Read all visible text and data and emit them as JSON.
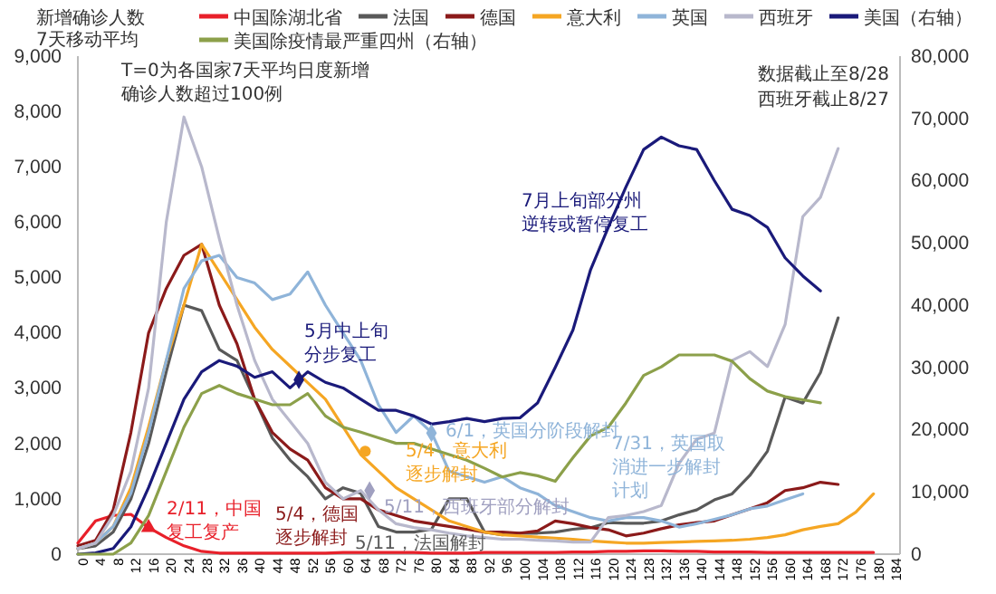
{
  "chart_data": {
    "type": "line",
    "ylabel": "新增确诊人数\n7天移动平均",
    "x": [
      0,
      4,
      8,
      12,
      16,
      20,
      24,
      28,
      32,
      36,
      40,
      44,
      48,
      52,
      56,
      60,
      64,
      68,
      72,
      76,
      80,
      84,
      88,
      92,
      96,
      100,
      104,
      108,
      112,
      116,
      120,
      124,
      128,
      132,
      136,
      140,
      144,
      148,
      152,
      156,
      160,
      164,
      168,
      172,
      176,
      180
    ],
    "xlim": [
      0,
      186
    ],
    "xticks": [
      0,
      4,
      8,
      12,
      16,
      20,
      24,
      28,
      32,
      36,
      40,
      44,
      48,
      52,
      56,
      60,
      64,
      68,
      72,
      76,
      80,
      84,
      88,
      92,
      96,
      100,
      104,
      108,
      112,
      116,
      120,
      124,
      128,
      132,
      136,
      140,
      144,
      148,
      152,
      156,
      160,
      164,
      168,
      172,
      176,
      180,
      184
    ],
    "ylim": [
      0,
      9000
    ],
    "yticks": [
      {
        "value": 0,
        "label": "0"
      },
      {
        "value": 1000,
        "label": "1,000"
      },
      {
        "value": 2000,
        "label": "2,000"
      },
      {
        "value": 3000,
        "label": "3,000"
      },
      {
        "value": 4000,
        "label": "4,000"
      },
      {
        "value": 5000,
        "label": "5,000"
      },
      {
        "value": 6000,
        "label": "6,000"
      },
      {
        "value": 7000,
        "label": "7,000"
      },
      {
        "value": 8000,
        "label": "8,000"
      },
      {
        "value": 9000,
        "label": "9,000"
      }
    ],
    "y2lim": [
      0,
      80000
    ],
    "y2ticks": [
      {
        "value": 0,
        "label": "0"
      },
      {
        "value": 10000,
        "label": "10,000"
      },
      {
        "value": 20000,
        "label": "20,000"
      },
      {
        "value": 30000,
        "label": "30,000"
      },
      {
        "value": 40000,
        "label": "40,000"
      },
      {
        "value": 50000,
        "label": "50,000"
      },
      {
        "value": 60000,
        "label": "60,000"
      },
      {
        "value": 70000,
        "label": "70,000"
      },
      {
        "value": 80000,
        "label": "80,000"
      }
    ],
    "grid": false,
    "legend": "top",
    "marker": "none",
    "line_style": "solid",
    "series": [
      {
        "name": "中国除湖北省",
        "color": "#e8202a",
        "values": [
          200,
          600,
          700,
          720,
          480,
          300,
          150,
          50,
          20,
          20,
          20,
          20,
          20,
          20,
          20,
          30,
          30,
          30,
          30,
          30,
          20,
          20,
          20,
          30,
          30,
          30,
          30,
          30,
          40,
          40,
          50,
          50,
          60,
          60,
          50,
          50,
          40,
          40,
          40,
          30,
          30,
          30,
          30,
          30,
          30,
          30
        ]
      },
      {
        "name": "法国",
        "color": "#595959",
        "values": [
          100,
          150,
          400,
          1000,
          2000,
          3300,
          4500,
          4400,
          3700,
          3500,
          2800,
          2100,
          1700,
          1400,
          1000,
          1200,
          1100,
          500,
          400,
          400,
          450,
          1000,
          1000,
          400,
          350,
          380,
          380,
          400,
          450,
          480,
          570,
          560,
          560,
          600,
          710,
          800,
          980,
          1090,
          1420,
          1860,
          2840,
          2730,
          3280,
          4270,
          null,
          null
        ]
      },
      {
        "name": "德国",
        "color": "#8b1a1a",
        "values": [
          150,
          250,
          800,
          2200,
          4000,
          4800,
          5400,
          5600,
          4500,
          3800,
          2800,
          2200,
          1900,
          1700,
          1200,
          1000,
          1000,
          800,
          700,
          600,
          550,
          500,
          450,
          400,
          400,
          380,
          420,
          600,
          550,
          480,
          440,
          330,
          380,
          460,
          530,
          570,
          600,
          710,
          820,
          930,
          1150,
          1200,
          1300,
          1260,
          null,
          null
        ]
      },
      {
        "name": "意大利",
        "color": "#f5a623",
        "values": [
          100,
          200,
          500,
          1200,
          2300,
          3500,
          4500,
          5600,
          5100,
          4600,
          4100,
          3700,
          3400,
          3100,
          2800,
          2300,
          1800,
          1500,
          1200,
          1000,
          800,
          600,
          500,
          400,
          350,
          330,
          310,
          290,
          270,
          240,
          220,
          200,
          200,
          210,
          220,
          230,
          240,
          250,
          270,
          300,
          350,
          440,
          500,
          550,
          760,
          1090
        ]
      },
      {
        "name": "英国",
        "color": "#8fb4d9",
        "values": [
          100,
          200,
          500,
          1100,
          2200,
          3500,
          4800,
          5300,
          5400,
          5000,
          4900,
          4600,
          4700,
          5100,
          4500,
          4000,
          3500,
          2700,
          2200,
          2500,
          2200,
          1500,
          1400,
          1300,
          1400,
          1200,
          1090,
          880,
          770,
          660,
          600,
          660,
          660,
          600,
          490,
          550,
          630,
          710,
          820,
          870,
          980,
          1090,
          null,
          null,
          null,
          null
        ]
      },
      {
        "name": "西班牙",
        "color": "#b8b8cc",
        "values": [
          100,
          200,
          700,
          1500,
          3000,
          6000,
          7900,
          7000,
          5700,
          4500,
          3500,
          2800,
          2400,
          2000,
          1300,
          1000,
          1150,
          800,
          550,
          480,
          440,
          380,
          330,
          300,
          270,
          270,
          250,
          240,
          220,
          220,
          660,
          700,
          770,
          880,
          1640,
          2080,
          2190,
          3500,
          3660,
          3390,
          4150,
          6100,
          6450,
          7330,
          null,
          null
        ]
      },
      {
        "name": "美国（右轴）",
        "color": "#1a1a7a",
        "axis": "y2",
        "values": [
          0,
          200,
          900,
          4400,
          10700,
          17800,
          24900,
          29300,
          31100,
          30200,
          28400,
          29300,
          26700,
          29300,
          27600,
          26700,
          24900,
          23100,
          23100,
          22200,
          20900,
          21300,
          21800,
          21300,
          21800,
          21900,
          24300,
          30000,
          36000,
          45700,
          52500,
          59000,
          65000,
          67000,
          65600,
          65000,
          60000,
          55400,
          54400,
          52500,
          47600,
          44700,
          42300,
          null,
          null,
          null
        ]
      },
      {
        "name": "美国除疫情最严重四州（右轴）",
        "color": "#8ca04a",
        "axis": "y2",
        "values": [
          0,
          0,
          0,
          1800,
          6200,
          13300,
          20400,
          25800,
          27100,
          25800,
          24900,
          24000,
          24000,
          25800,
          22200,
          20400,
          19600,
          18700,
          17800,
          17800,
          16900,
          16000,
          15100,
          13800,
          12400,
          13100,
          12600,
          11700,
          15500,
          19000,
          20400,
          24300,
          28700,
          30100,
          32000,
          32000,
          32000,
          31000,
          28200,
          26200,
          25300,
          24800,
          24300,
          null,
          null,
          null
        ]
      }
    ],
    "annotations": [
      "T=0为各国家7天平均日度新增确诊人数超过100例",
      "数据截止至8/28",
      "西班牙截止8/27",
      {
        "text": "2/11，中国复工复产",
        "x": 16,
        "y": 480
      },
      "5/4，德国逐步解封",
      "5/11，法国解封",
      {
        "text": "5月中上旬分步复工",
        "x": 50,
        "y": 3150
      },
      {
        "text": "5/4，意大利逐步解封",
        "x": 65,
        "y": 1860
      },
      {
        "text": "6/1，英国分阶段解封",
        "x": 80,
        "y": 2190
      },
      {
        "text": "5/11，西班牙部分解封",
        "x": 66,
        "y": 1150
      },
      "7/31，英国取消进一步解封计划",
      "7月上旬部分州逆转或暂停复工"
    ]
  }
}
